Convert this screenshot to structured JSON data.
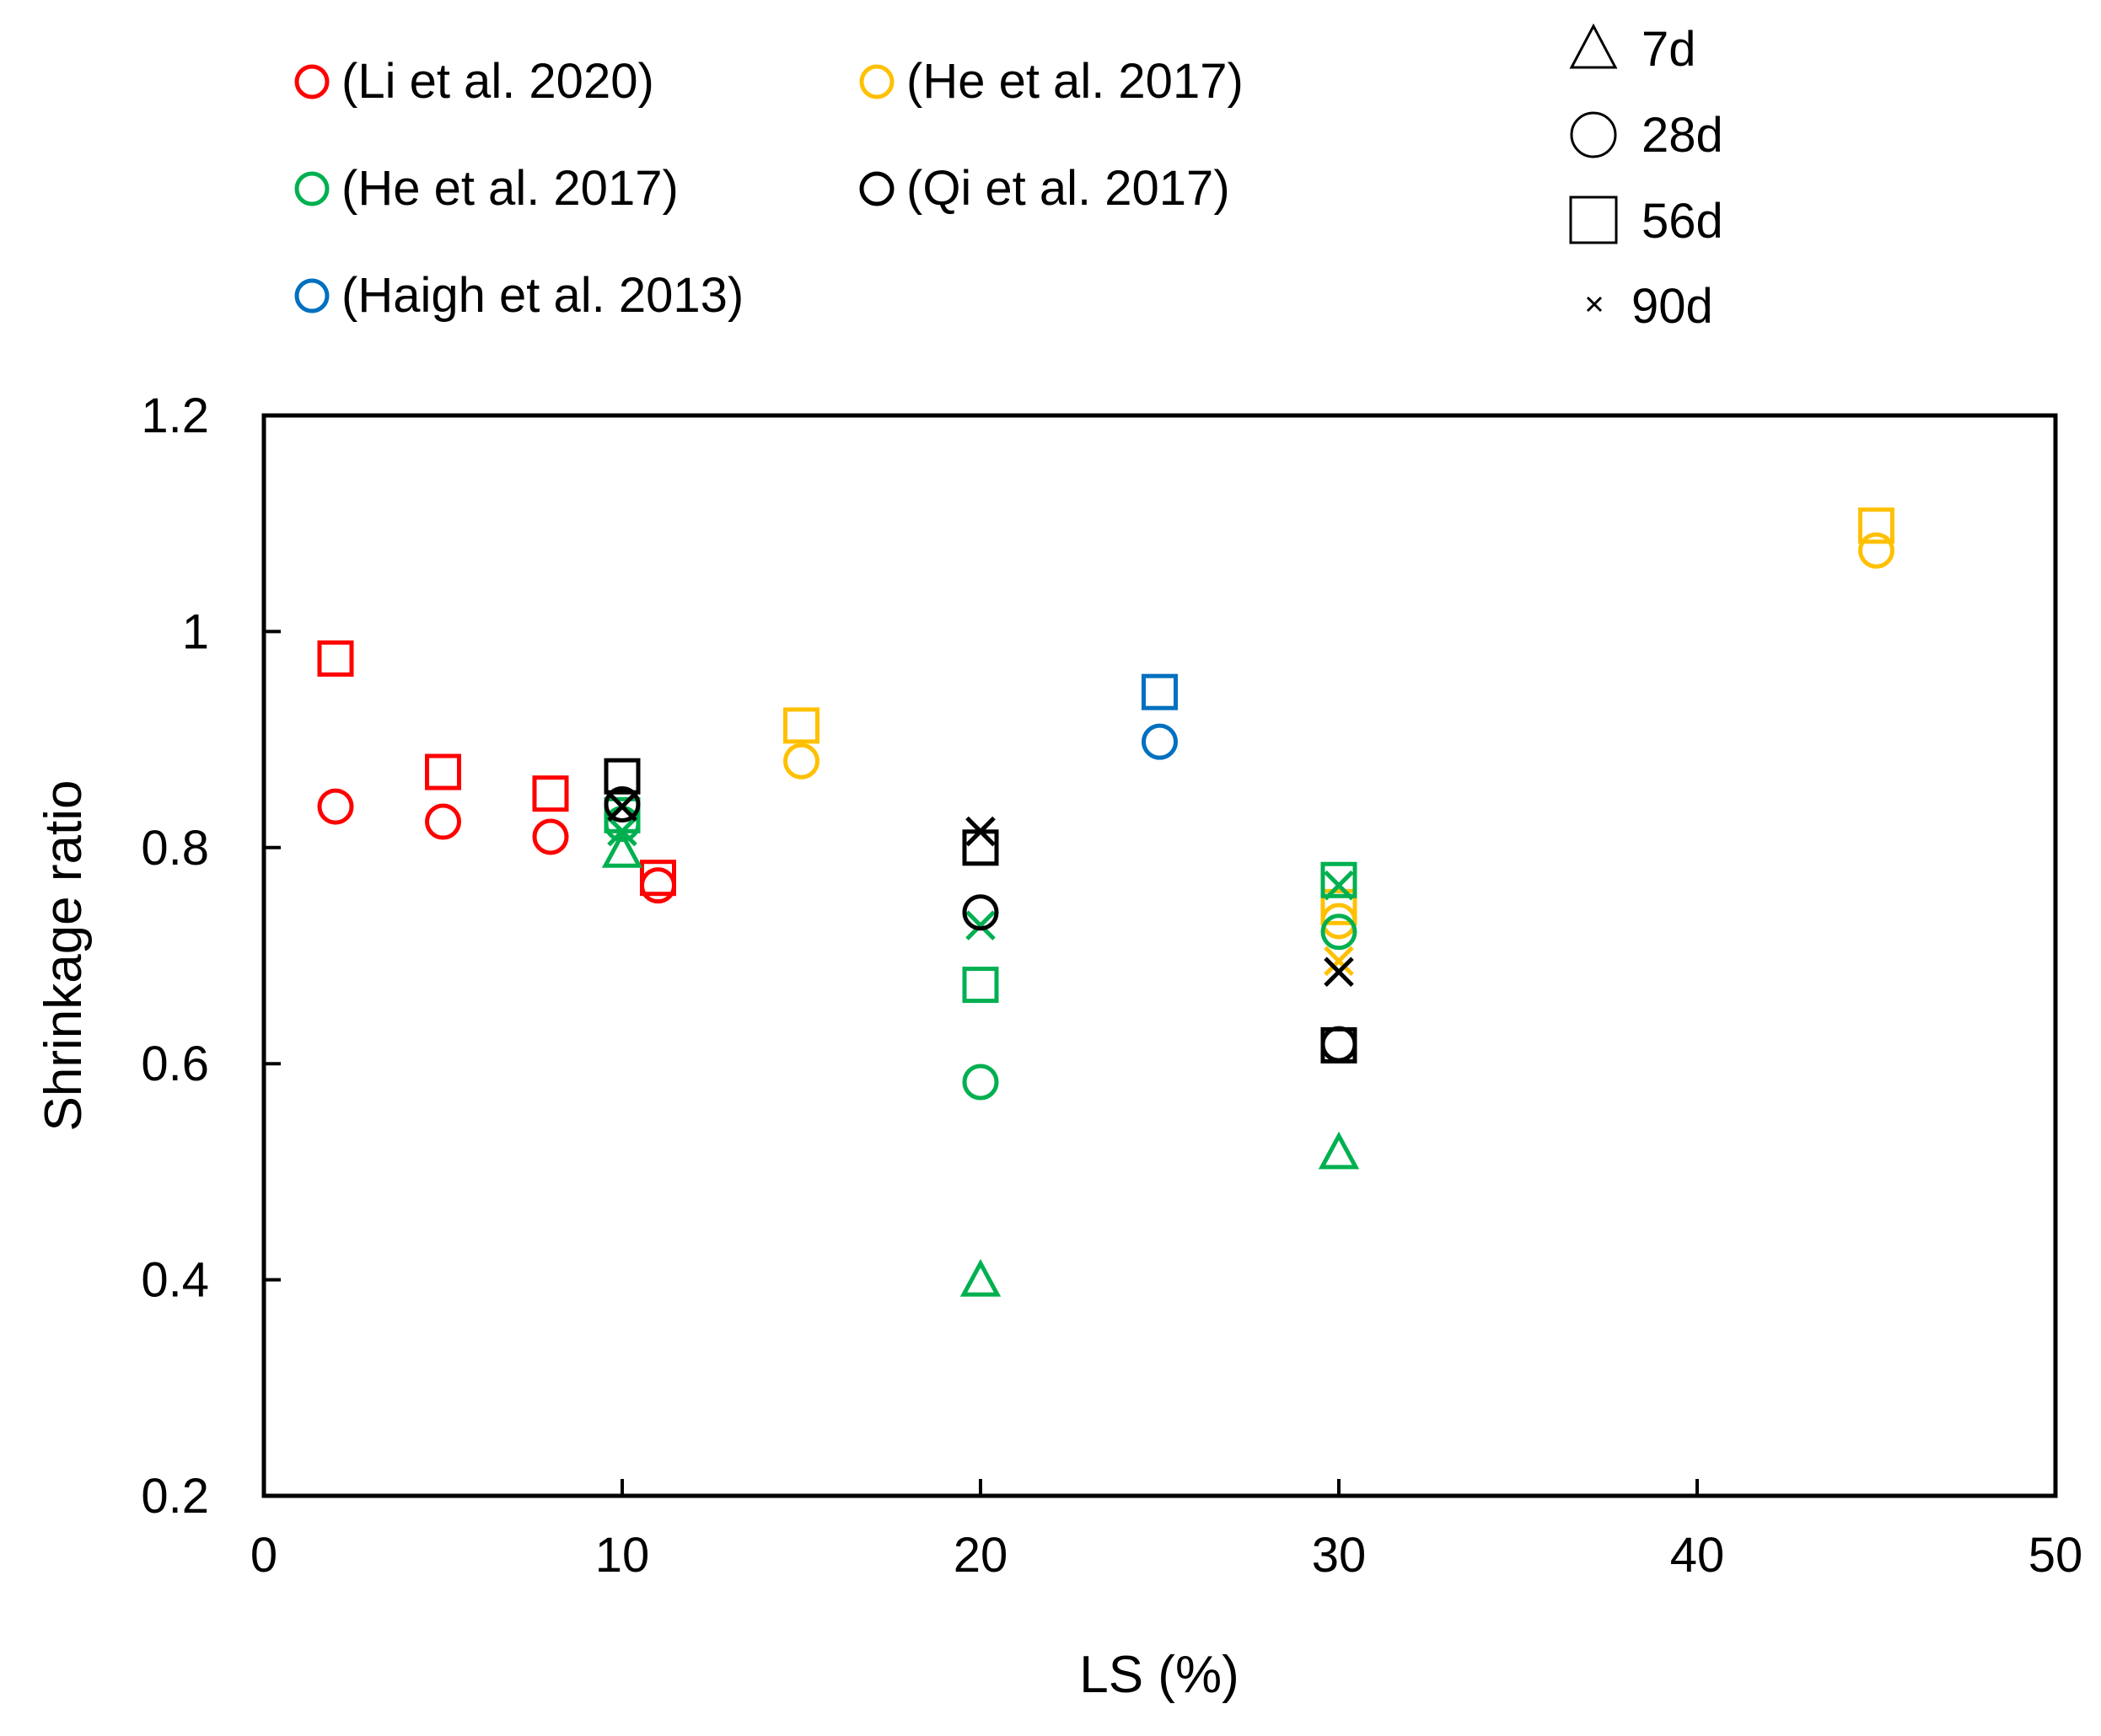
{
  "chart_data": {
    "type": "scatter",
    "title": "",
    "xlabel": "LS (%)",
    "ylabel": "Shrinkage ratio",
    "xlim": [
      0,
      50
    ],
    "ylim": [
      0.2,
      1.2
    ],
    "x_ticks": [
      "0",
      "10",
      "20",
      "30",
      "40",
      "50"
    ],
    "y_ticks": [
      "0.2",
      "0.4",
      "0.6",
      "0.8",
      "1",
      "1.2"
    ],
    "grid": false,
    "legend_position": "top",
    "source_legend": [
      {
        "label": "(Li et al. 2020)",
        "color": "#ff0000"
      },
      {
        "label": "(He et al. 2017)",
        "color": "#ffc000"
      },
      {
        "label": "(He et al. 2017)",
        "color": "#00b050"
      },
      {
        "label": "(Qi et al. 2017)",
        "color": "#000000"
      },
      {
        "label": "(Haigh et al. 2013)",
        "color": "#0070c0"
      }
    ],
    "age_legend": [
      {
        "label": "7d",
        "marker": "triangle"
      },
      {
        "label": "28d",
        "marker": "circle"
      },
      {
        "label": "56d",
        "marker": "square"
      },
      {
        "label": "90d",
        "marker": "x"
      }
    ],
    "series": [
      {
        "name": "Li et al. 2020 - 28d",
        "color": "#ff0000",
        "marker": "circle",
        "points": [
          [
            2,
            0.838
          ],
          [
            5,
            0.824
          ],
          [
            8,
            0.81
          ],
          [
            11,
            0.765
          ]
        ]
      },
      {
        "name": "Li et al. 2020 - 56d",
        "color": "#ff0000",
        "marker": "square",
        "points": [
          [
            2,
            0.975
          ],
          [
            5,
            0.87
          ],
          [
            8,
            0.85
          ],
          [
            11,
            0.772
          ]
        ]
      },
      {
        "name": "He et al. 2017 (orange) - 28d",
        "color": "#ffc000",
        "marker": "circle",
        "points": [
          [
            15,
            0.88
          ],
          [
            30,
            0.732
          ],
          [
            45,
            1.075
          ]
        ]
      },
      {
        "name": "He et al. 2017 (orange) - 56d",
        "color": "#ffc000",
        "marker": "square",
        "points": [
          [
            15,
            0.913
          ],
          [
            30,
            0.745
          ],
          [
            45,
            1.098
          ]
        ]
      },
      {
        "name": "He et al. 2017 (orange) - 90d",
        "color": "#ffc000",
        "marker": "x",
        "points": [
          [
            30,
            0.695
          ]
        ]
      },
      {
        "name": "He et al. 2017 (green) - 7d",
        "color": "#00b050",
        "marker": "triangle",
        "points": [
          [
            10,
            0.795
          ],
          [
            20,
            0.398
          ],
          [
            30,
            0.516
          ]
        ]
      },
      {
        "name": "He et al. 2017 (green) - 28d",
        "color": "#00b050",
        "marker": "circle",
        "points": [
          [
            10,
            0.822
          ],
          [
            20,
            0.583
          ],
          [
            30,
            0.722
          ]
        ]
      },
      {
        "name": "He et al. 2017 (green) - 56d",
        "color": "#00b050",
        "marker": "square",
        "points": [
          [
            10,
            0.83
          ],
          [
            20,
            0.673
          ],
          [
            30,
            0.77
          ]
        ]
      },
      {
        "name": "He et al. 2017 (green) - 90d",
        "color": "#00b050",
        "marker": "x",
        "points": [
          [
            10,
            0.815
          ],
          [
            20,
            0.728
          ],
          [
            30,
            0.765
          ]
        ]
      },
      {
        "name": "Qi et al. 2017 - 28d",
        "color": "#000000",
        "marker": "circle",
        "points": [
          [
            10,
            0.84
          ],
          [
            20,
            0.74
          ],
          [
            30,
            0.618
          ]
        ]
      },
      {
        "name": "Qi et al. 2017 - 56d",
        "color": "#000000",
        "marker": "square",
        "points": [
          [
            10,
            0.866
          ],
          [
            20,
            0.8
          ],
          [
            30,
            0.617
          ]
        ]
      },
      {
        "name": "Qi et al. 2017 - 90d",
        "color": "#000000",
        "marker": "x",
        "points": [
          [
            10,
            0.838
          ],
          [
            20,
            0.815
          ],
          [
            30,
            0.685
          ]
        ]
      },
      {
        "name": "Haigh et al. 2013 - 28d",
        "color": "#0070c0",
        "marker": "circle",
        "points": [
          [
            25,
            0.898
          ]
        ]
      },
      {
        "name": "Haigh et al. 2013 - 56d",
        "color": "#0070c0",
        "marker": "square",
        "points": [
          [
            25,
            0.944
          ]
        ]
      }
    ]
  }
}
